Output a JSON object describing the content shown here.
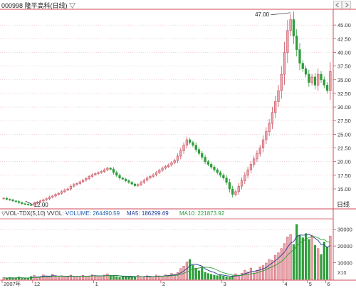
{
  "header": {
    "code": "000998",
    "name": "隆平高科(日线)",
    "dropdown_glyph": "▽",
    "nav_left_icon": "left-arrow",
    "nav_right_icon": "right-arrow"
  },
  "price_panel": {
    "high_label": "47.00",
    "low_label": "12.00",
    "period_label": "日线"
  },
  "volume_panel": {
    "indicator_label": "▽VOL-TDX(5,10) VVOL: -",
    "volume_label": "VOLUME: 264490.59",
    "ma5_label": "MA5: 186299.69",
    "ma10_label": "MA10: 221873.92",
    "unit_label": "X10"
  },
  "time_axis": {
    "labels": [
      "2007年",
      "12",
      "1",
      "2",
      "3",
      "4",
      "5",
      "6"
    ]
  },
  "colors": {
    "up": "#e9a9b0",
    "up_stroke": "#c8505e",
    "down": "#2e9d3a",
    "ma5": "#1f3a93",
    "ma10": "#2e9d3a",
    "grid": "#e6b8bd",
    "axis": "#d34a5a",
    "text_blue": "#1f5fae"
  },
  "chart_data": [
    {
      "type": "candlestick",
      "title": "隆平高科(日线)",
      "ylim": [
        12.0,
        47.5
      ],
      "y_ticks": [
        15.0,
        17.5,
        20.0,
        22.5,
        25.0,
        27.5,
        30.0,
        32.5,
        35.0,
        37.5,
        40.0,
        42.5,
        45.0
      ],
      "annotations": [
        {
          "label": "47.00",
          "value": 47.0,
          "kind": "high"
        },
        {
          "label": "12.00",
          "value": 12.0,
          "kind": "low"
        }
      ],
      "x_tick_labels": [
        "2007年",
        "12",
        "1",
        "2",
        "3",
        "4",
        "5",
        "6"
      ],
      "close": [
        13.3,
        13.1,
        13.0,
        12.8,
        12.7,
        12.5,
        12.3,
        12.2,
        12.1,
        12.05,
        12.4,
        12.6,
        12.8,
        13.0,
        13.2,
        13.5,
        13.7,
        14.0,
        14.2,
        14.5,
        14.8,
        15.0,
        15.5,
        15.8,
        16.0,
        16.3,
        16.6,
        16.9,
        17.3,
        17.6,
        17.8,
        18.0,
        18.2,
        18.5,
        18.8,
        18.6,
        18.0,
        17.5,
        17.0,
        16.8,
        16.5,
        16.2,
        15.9,
        15.6,
        15.8,
        16.2,
        16.6,
        17.0,
        17.3,
        17.6,
        18.0,
        18.4,
        18.8,
        19.1,
        19.4,
        19.8,
        20.2,
        21.0,
        22.0,
        23.0,
        24.0,
        23.5,
        23.0,
        22.2,
        21.5,
        20.8,
        20.0,
        19.5,
        19.0,
        18.5,
        18.0,
        17.5,
        17.0,
        16.2,
        15.0,
        14.0,
        14.5,
        15.5,
        16.5,
        17.5,
        18.5,
        19.5,
        20.5,
        21.5,
        22.5,
        24.0,
        25.5,
        27.0,
        29.0,
        31.0,
        33.0,
        36.0,
        40.0,
        44.0,
        46.0,
        43.0,
        40.5,
        38.0,
        37.0,
        36.0,
        34.5,
        35.5,
        34.0,
        36.0,
        35.0,
        34.0,
        33.0,
        36.5
      ]
    },
    {
      "type": "bar",
      "title": "VOL-TDX(5,10)",
      "unit": "X10",
      "ylim": [
        0,
        35000
      ],
      "y_ticks": [
        10000,
        20000,
        30000
      ],
      "legend": [
        {
          "name": "VOLUME",
          "value": 264490.59
        },
        {
          "name": "MA5",
          "value": 186299.69
        },
        {
          "name": "MA10",
          "value": 221873.92
        }
      ],
      "volume": [
        1000,
        800,
        1200,
        700,
        900,
        1500,
        600,
        700,
        800,
        1800,
        2500,
        1600,
        1400,
        2800,
        2000,
        1700,
        3200,
        1500,
        1400,
        2200,
        1600,
        1800,
        2600,
        1700,
        1500,
        2000,
        2400,
        1800,
        2100,
        2800,
        2300,
        1900,
        1500,
        2600,
        3400,
        2400,
        2000,
        1700,
        1300,
        1500,
        1700,
        1300,
        1200,
        1600,
        2400,
        1800,
        1500,
        2200,
        1400,
        1700,
        2600,
        2100,
        1900,
        2800,
        2400,
        3600,
        3000,
        4200,
        6500,
        8000,
        10500,
        12000,
        8500,
        6800,
        5200,
        7400,
        4400,
        3600,
        3100,
        2600,
        2300,
        2700,
        2000,
        1600,
        1400,
        2100,
        3400,
        2600,
        3700,
        5500,
        4500,
        6800,
        3900,
        5500,
        7600,
        8300,
        9800,
        12000,
        11500,
        14500,
        16000,
        18500,
        21500,
        25500,
        27000,
        21000,
        33000,
        26500,
        25000,
        27500,
        24000,
        26500,
        20500,
        18500,
        15000,
        22500,
        19500,
        26000
      ]
    }
  ]
}
